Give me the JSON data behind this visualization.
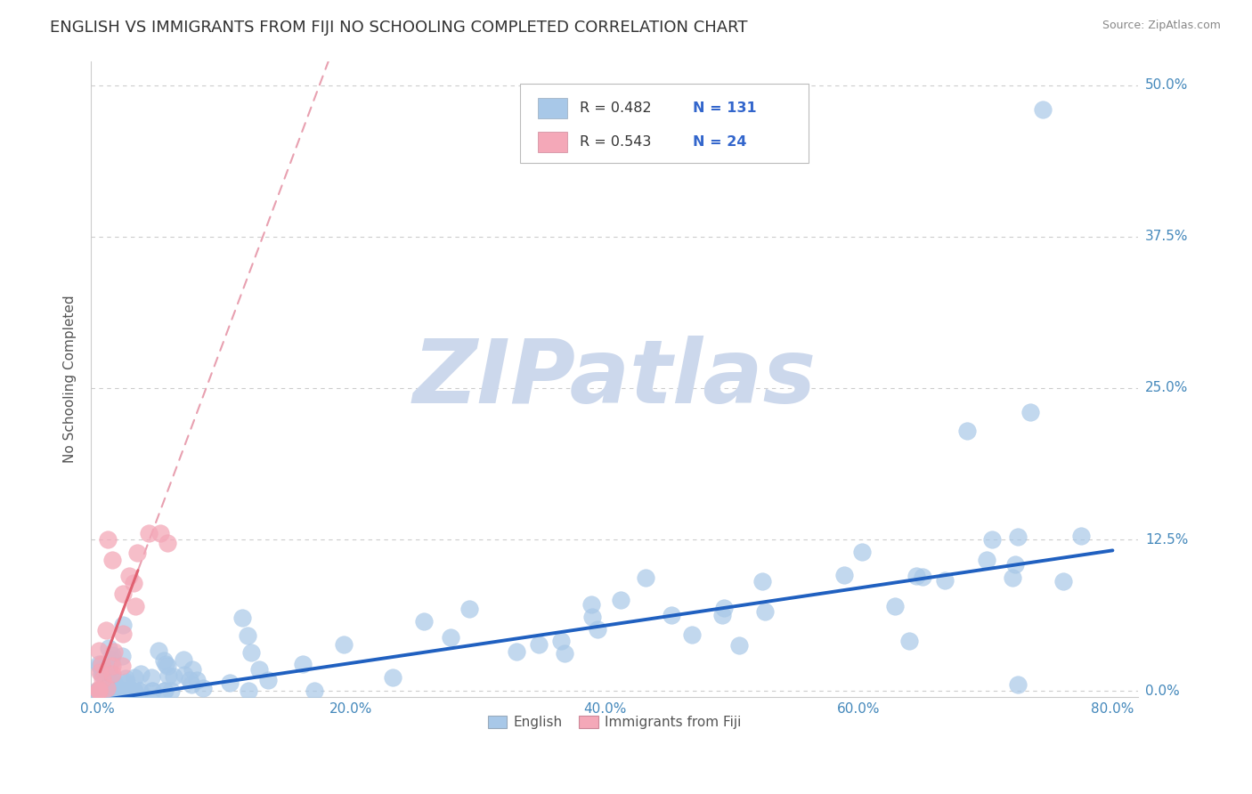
{
  "title": "ENGLISH VS IMMIGRANTS FROM FIJI NO SCHOOLING COMPLETED CORRELATION CHART",
  "source_text": "Source: ZipAtlas.com",
  "ylabel": "No Schooling Completed",
  "watermark": "ZIPatlas",
  "xlim": [
    -0.005,
    0.82
  ],
  "ylim": [
    -0.005,
    0.52
  ],
  "xticks": [
    0.0,
    0.2,
    0.4,
    0.6,
    0.8
  ],
  "yticks": [
    0.0,
    0.125,
    0.25,
    0.375,
    0.5
  ],
  "ytick_labels": [
    "0.0%",
    "12.5%",
    "25.0%",
    "37.5%",
    "50.0%"
  ],
  "xtick_labels": [
    "0.0%",
    "20.0%",
    "40.0%",
    "60.0%",
    "80.0%"
  ],
  "english_color": "#a8c8e8",
  "fiji_color": "#f4a8b8",
  "english_line_color": "#2060c0",
  "fiji_line_color": "#e06070",
  "fiji_dash_color": "#e8a0b0",
  "R_english": 0.482,
  "N_english": 131,
  "R_fiji": 0.543,
  "N_fiji": 24,
  "legend_english": "English",
  "legend_fiji": "Immigrants from Fiji",
  "title_fontsize": 13,
  "axis_label_fontsize": 11,
  "tick_fontsize": 11,
  "watermark_color": "#ccd8ec",
  "background_color": "#ffffff",
  "grid_color": "#cccccc",
  "english_slope": 0.155,
  "english_intercept": -0.008,
  "fiji_slope": 2.8,
  "fiji_intercept": 0.01
}
